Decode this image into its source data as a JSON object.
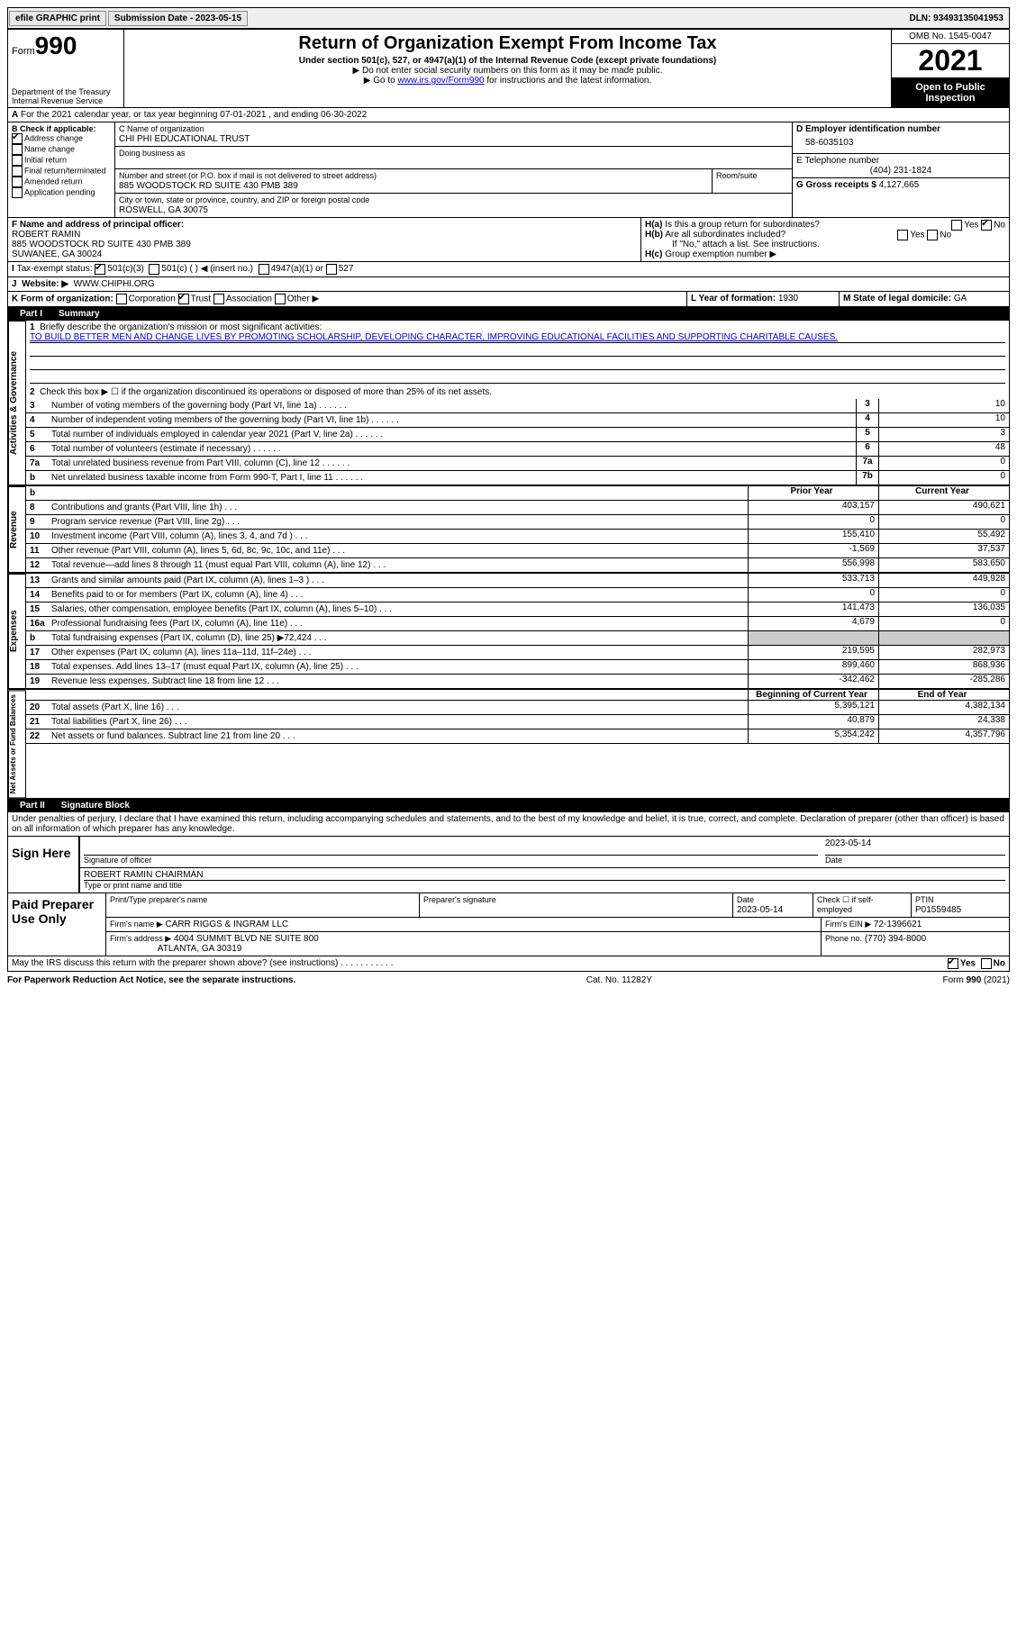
{
  "topbar": {
    "efile": "efile GRAPHIC print",
    "submission_label": "Submission Date - 2023-05-15",
    "dln_label": "DLN: 93493135041953"
  },
  "header": {
    "form_label": "Form",
    "form_num": "990",
    "dept": "Department of the Treasury",
    "irs": "Internal Revenue Service",
    "title": "Return of Organization Exempt From Income Tax",
    "subtitle": "Under section 501(c), 527, or 4947(a)(1) of the Internal Revenue Code (except private foundations)",
    "note1": "▶ Do not enter social security numbers on this form as it may be made public.",
    "note2_pre": "▶ Go to ",
    "note2_link": "www.irs.gov/Form990",
    "note2_post": " for instructions and the latest information.",
    "omb": "OMB No. 1545-0047",
    "year": "2021",
    "open": "Open to Public Inspection"
  },
  "periodA": "For the 2021 calendar year, or tax year beginning 07-01-2021   , and ending 06-30-2022",
  "B": {
    "label": "B Check if applicable:",
    "addr_change": "Address change",
    "name_change": "Name change",
    "initial": "Initial return",
    "final": "Final return/terminated",
    "amended": "Amended return",
    "app_pending": "Application pending"
  },
  "C": {
    "name_label": "C Name of organization",
    "name": "CHI PHI EDUCATIONAL TRUST",
    "dba_label": "Doing business as",
    "street_label": "Number and street (or P.O. box if mail is not delivered to street address)",
    "street": "885 WOODSTOCK RD SUITE 430 PMB 389",
    "room_label": "Room/suite",
    "city_label": "City or town, state or province, country, and ZIP or foreign postal code",
    "city": "ROSWELL, GA  30075"
  },
  "D": {
    "label": "D Employer identification number",
    "value": "58-6035103"
  },
  "E": {
    "label": "E Telephone number",
    "value": "(404) 231-1824"
  },
  "G": {
    "label": "G Gross receipts $",
    "value": "4,127,665"
  },
  "F": {
    "label": "F  Name and address of principal officer:",
    "name": "ROBERT RAMIN",
    "addr1": "885 WOODSTOCK RD SUITE 430 PMB 389",
    "addr2": "SUWANEE, GA  30024"
  },
  "H": {
    "a": "Is this a group return for subordinates?",
    "b": "Are all subordinates included?",
    "b_note": "If \"No,\" attach a list. See instructions.",
    "c": "Group exemption number ▶"
  },
  "I": {
    "label": "Tax-exempt status:",
    "o1": "501(c)(3)",
    "o2": "501(c) (  ) ◀ (insert no.)",
    "o3": "4947(a)(1) or",
    "o4": "527"
  },
  "J": {
    "label": "Website: ▶",
    "value": "WWW.CHIPHI.ORG"
  },
  "K": {
    "label": "K Form of organization:",
    "corp": "Corporation",
    "trust": "Trust",
    "assoc": "Association",
    "other": "Other ▶"
  },
  "L": {
    "label": "L Year of formation:",
    "value": "1930"
  },
  "M": {
    "label": "M State of legal domicile:",
    "value": "GA"
  },
  "part1": {
    "title": "Part I",
    "heading": "Summary",
    "q1": "Briefly describe the organization's mission or most significant activities:",
    "mission": "TO BUILD BETTER MEN AND CHANGE LIVES BY PROMOTING SCHOLARSHIP, DEVELOPING CHARACTER, IMPROVING EDUCATIONAL FACILITIES AND SUPPORTING CHARITABLE CAUSES.",
    "q2": "Check this box ▶ ☐  if the organization discontinued its operations or disposed of more than 25% of its net assets."
  },
  "lines_gov": [
    {
      "n": "3",
      "lbl": "Number of voting members of the governing body (Part VI, line 1a)",
      "box": "3",
      "val": "10"
    },
    {
      "n": "4",
      "lbl": "Number of independent voting members of the governing body (Part VI, line 1b)",
      "box": "4",
      "val": "10"
    },
    {
      "n": "5",
      "lbl": "Total number of individuals employed in calendar year 2021 (Part V, line 2a)",
      "box": "5",
      "val": "3"
    },
    {
      "n": "6",
      "lbl": "Total number of volunteers (estimate if necessary)",
      "box": "6",
      "val": "48"
    },
    {
      "n": "7a",
      "lbl": "Total unrelated business revenue from Part VIII, column (C), line 12",
      "box": "7a",
      "val": "0"
    },
    {
      "n": "b",
      "lbl": "Net unrelated business taxable income from Form 990-T, Part I, line 11",
      "box": "7b",
      "val": "0"
    }
  ],
  "col_headers": {
    "prior": "Prior Year",
    "current": "Current Year",
    "boy": "Beginning of Current Year",
    "eoy": "End of Year"
  },
  "lines_rev": [
    {
      "n": "8",
      "lbl": "Contributions and grants (Part VIII, line 1h)",
      "p": "403,157",
      "c": "490,621"
    },
    {
      "n": "9",
      "lbl": "Program service revenue (Part VIII, line 2g)",
      "p": "0",
      "c": "0"
    },
    {
      "n": "10",
      "lbl": "Investment income (Part VIII, column (A), lines 3, 4, and 7d )",
      "p": "155,410",
      "c": "55,492"
    },
    {
      "n": "11",
      "lbl": "Other revenue (Part VIII, column (A), lines 5, 6d, 8c, 9c, 10c, and 11e)",
      "p": "-1,569",
      "c": "37,537"
    },
    {
      "n": "12",
      "lbl": "Total revenue—add lines 8 through 11 (must equal Part VIII, column (A), line 12)",
      "p": "556,998",
      "c": "583,650"
    }
  ],
  "lines_exp": [
    {
      "n": "13",
      "lbl": "Grants and similar amounts paid (Part IX, column (A), lines 1–3 )",
      "p": "533,713",
      "c": "449,928"
    },
    {
      "n": "14",
      "lbl": "Benefits paid to or for members (Part IX, column (A), line 4)",
      "p": "0",
      "c": "0"
    },
    {
      "n": "15",
      "lbl": "Salaries, other compensation, employee benefits (Part IX, column (A), lines 5–10)",
      "p": "141,473",
      "c": "136,035"
    },
    {
      "n": "16a",
      "lbl": "Professional fundraising fees (Part IX, column (A), line 11e)",
      "p": "4,679",
      "c": "0"
    },
    {
      "n": "b",
      "lbl": "Total fundraising expenses (Part IX, column (D), line 25) ▶72,424",
      "p": "",
      "c": "",
      "shaded": true
    },
    {
      "n": "17",
      "lbl": "Other expenses (Part IX, column (A), lines 11a–11d, 11f–24e)",
      "p": "219,595",
      "c": "282,973"
    },
    {
      "n": "18",
      "lbl": "Total expenses. Add lines 13–17 (must equal Part IX, column (A), line 25)",
      "p": "899,460",
      "c": "868,936"
    },
    {
      "n": "19",
      "lbl": "Revenue less expenses. Subtract line 18 from line 12",
      "p": "-342,462",
      "c": "-285,286"
    }
  ],
  "lines_net": [
    {
      "n": "20",
      "lbl": "Total assets (Part X, line 16)",
      "p": "5,395,121",
      "c": "4,382,134"
    },
    {
      "n": "21",
      "lbl": "Total liabilities (Part X, line 26)",
      "p": "40,879",
      "c": "24,338"
    },
    {
      "n": "22",
      "lbl": "Net assets or fund balances. Subtract line 21 from line 20",
      "p": "5,354,242",
      "c": "4,357,796"
    }
  ],
  "vert": {
    "gov": "Activities & Governance",
    "rev": "Revenue",
    "exp": "Expenses",
    "net": "Net Assets or Fund Balances"
  },
  "part2": {
    "title": "Part II",
    "heading": "Signature Block",
    "decl": "Under penalties of perjury, I declare that I have examined this return, including accompanying schedules and statements, and to the best of my knowledge and belief, it is true, correct, and complete. Declaration of preparer (other than officer) is based on all information of which preparer has any knowledge."
  },
  "sign": {
    "here": "Sign Here",
    "sig_label": "Signature of officer",
    "date": "2023-05-14",
    "date_label": "Date",
    "name": "ROBERT RAMIN  CHAIRMAN",
    "name_label": "Type or print name and title"
  },
  "preparer": {
    "label": "Paid Preparer Use Only",
    "print_label": "Print/Type preparer's name",
    "sig_label": "Preparer's signature",
    "date_label": "Date",
    "date": "2023-05-14",
    "check_label": "Check ☐ if self-employed",
    "ptin_label": "PTIN",
    "ptin": "P01559485",
    "firm_name_label": "Firm's name    ▶",
    "firm_name": "CARR RIGGS & INGRAM LLC",
    "firm_ein_label": "Firm's EIN ▶",
    "firm_ein": "72-1396621",
    "firm_addr_label": "Firm's address ▶",
    "firm_addr1": "4004 SUMMIT BLVD NE SUITE 800",
    "firm_addr2": "ATLANTA, GA  30319",
    "phone_label": "Phone no.",
    "phone": "(770) 394-8000"
  },
  "footer": {
    "discuss": "May the IRS discuss this return with the preparer shown above? (see instructions)",
    "yes": "Yes",
    "no": "No",
    "paperwork": "For Paperwork Reduction Act Notice, see the separate instructions.",
    "cat": "Cat. No. 11282Y",
    "form": "Form 990 (2021)"
  }
}
